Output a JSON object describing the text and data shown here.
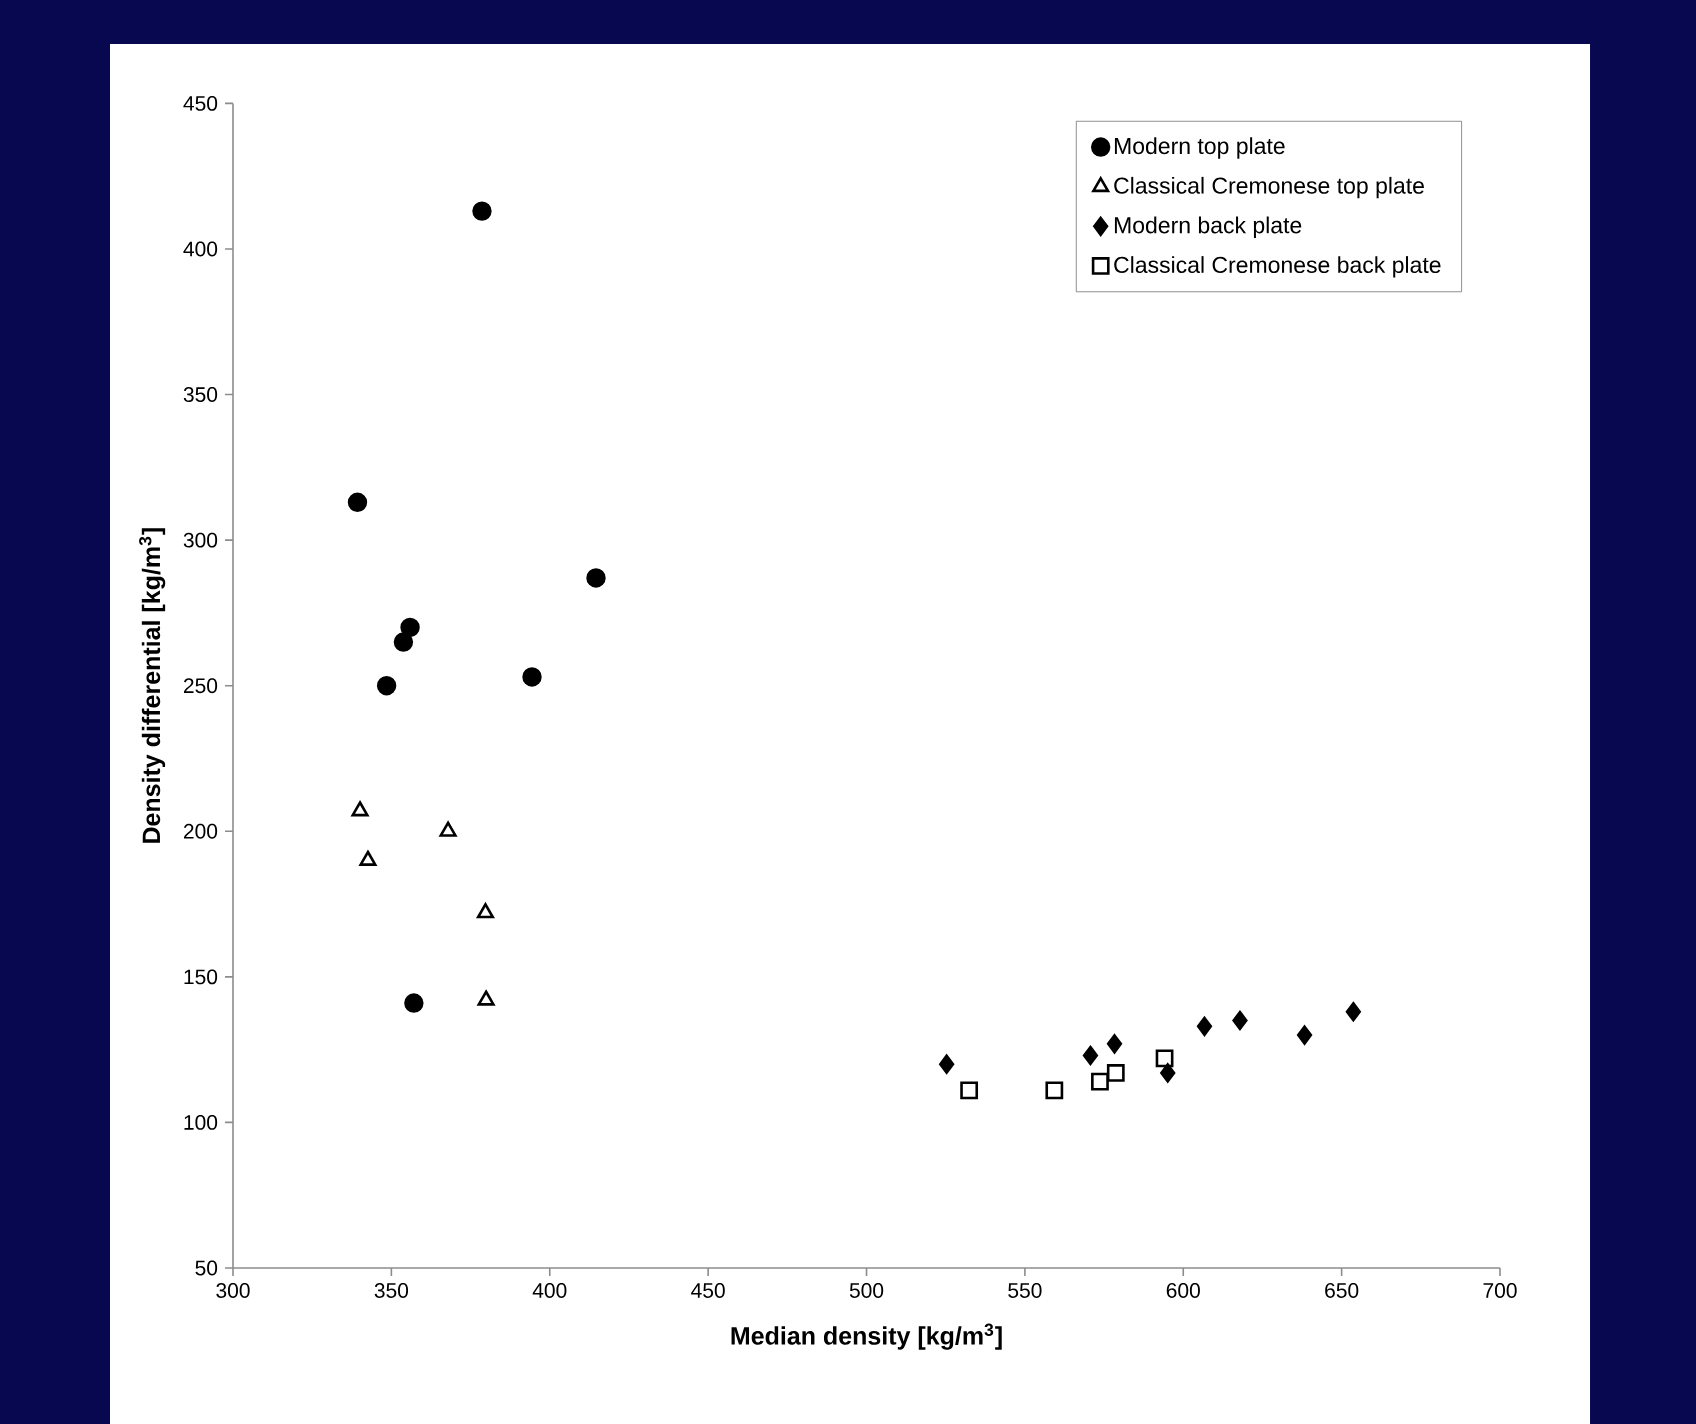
{
  "chart_data": {
    "type": "scatter",
    "xlabel": "Median density [kg/m$^{3}$]",
    "ylabel": "Density differential [kg/m$^{3}$]",
    "xlim": [
      300,
      700
    ],
    "xticks": [
      300,
      350,
      400,
      450,
      500,
      550,
      600,
      650,
      700
    ],
    "ylim": [
      50,
      450
    ],
    "yticks": [
      50,
      100,
      150,
      200,
      250,
      300,
      350,
      400,
      450
    ],
    "grid": false,
    "legend": "top right",
    "series": [
      {
        "name": "Modern top plate",
        "color": "#000000",
        "marker": "circle",
        "x": [
          378.6,
          339.3,
          414.6,
          355.9,
          353.8,
          348.5,
          394.4,
          357.1
        ],
        "values": [
          413,
          313,
          287,
          270,
          265,
          250,
          253,
          141
        ]
      },
      {
        "name": "Classical Cremonese top plate",
        "color": "#000000",
        "marker": "triangle",
        "x": [
          340.1,
          367.9,
          342.6,
          379.7,
          379.9
        ],
        "values": [
          207,
          200,
          190,
          172,
          142
        ]
      },
      {
        "name": "Modern back plate",
        "color": "#000000",
        "marker": "diamond",
        "x": [
          525.3,
          570.7,
          578.3,
          595.1,
          606.7,
          617.9,
          638.3,
          653.7
        ],
        "values": [
          120,
          123,
          127,
          117,
          133,
          135,
          130,
          138
        ]
      },
      {
        "name": "Classical Cremonese back plate",
        "color": "#000000",
        "marker": "square",
        "x": [
          532.4,
          559.3,
          573.7,
          578.7,
          594.1
        ],
        "values": [
          111,
          111,
          114,
          117,
          122
        ]
      }
    ]
  }
}
